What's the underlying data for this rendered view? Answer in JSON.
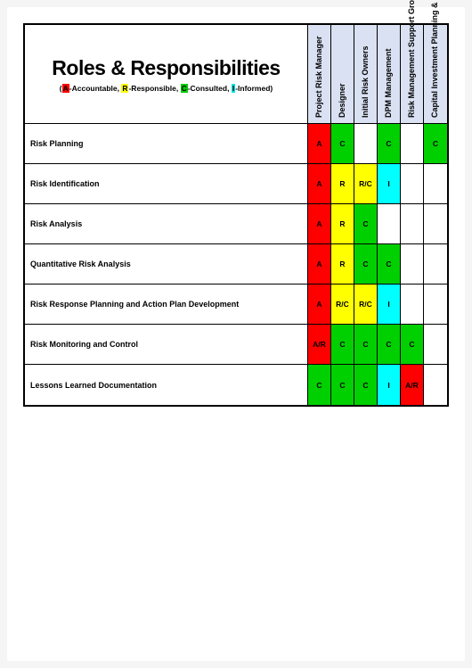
{
  "title": "Roles & Responsibilities",
  "legend": {
    "prefix": "(",
    "a_letter": "A",
    "a_text": "-Accountable, ",
    "r_letter": "R",
    "r_text": "-Responsible, ",
    "c_letter": "C",
    "c_text": "-Consulted, ",
    "i_letter": "I",
    "i_text": "-Informed)",
    "a_color": "#ff0000",
    "r_color": "#ffff00",
    "c_color": "#00cc00",
    "i_color": "#00e5e5"
  },
  "colors": {
    "A": "#ff0000",
    "R": "#ffff00",
    "C": "#00d000",
    "I": "#00ffff",
    "AR": "#ff0000",
    "RC": "#ffff00",
    "RC_green": "#00d000",
    "header_bg": "#d9e1f2",
    "blank": "#ffffff"
  },
  "columns": [
    "Project  Risk Manager",
    "Designer",
    "Initial Risk Owners",
    "DPM Management",
    "Risk Management Support Group",
    "Capital Investment Planning & Dev."
  ],
  "rows": [
    {
      "label": "Risk Planning",
      "cells": [
        {
          "v": "A",
          "bg": "#ff0000"
        },
        {
          "v": "C",
          "bg": "#00d000"
        },
        {
          "v": "",
          "bg": "#ffffff"
        },
        {
          "v": "C",
          "bg": "#00d000"
        },
        {
          "v": "",
          "bg": "#ffffff"
        },
        {
          "v": "C",
          "bg": "#00d000"
        }
      ]
    },
    {
      "label": "Risk Identification",
      "cells": [
        {
          "v": "A",
          "bg": "#ff0000"
        },
        {
          "v": "R",
          "bg": "#ffff00"
        },
        {
          "v": "R/C",
          "bg": "#ffff00"
        },
        {
          "v": "I",
          "bg": "#00ffff"
        },
        {
          "v": "",
          "bg": "#ffffff"
        },
        {
          "v": "",
          "bg": "#ffffff"
        }
      ]
    },
    {
      "label": "Risk Analysis",
      "cells": [
        {
          "v": "A",
          "bg": "#ff0000"
        },
        {
          "v": "R",
          "bg": "#ffff00"
        },
        {
          "v": "C",
          "bg": "#00d000"
        },
        {
          "v": "",
          "bg": "#ffffff"
        },
        {
          "v": "",
          "bg": "#ffffff"
        },
        {
          "v": "",
          "bg": "#ffffff"
        }
      ]
    },
    {
      "label": "Quantitative Risk Analysis",
      "cells": [
        {
          "v": "A",
          "bg": "#ff0000"
        },
        {
          "v": "R",
          "bg": "#ffff00"
        },
        {
          "v": "C",
          "bg": "#00d000"
        },
        {
          "v": "C",
          "bg": "#00d000"
        },
        {
          "v": "",
          "bg": "#ffffff"
        },
        {
          "v": "",
          "bg": "#ffffff"
        }
      ]
    },
    {
      "label": "Risk Response Planning and Action Plan Development",
      "cells": [
        {
          "v": "A",
          "bg": "#ff0000"
        },
        {
          "v": "R/C",
          "bg": "#ffff00"
        },
        {
          "v": "R/C",
          "bg": "#ffff00"
        },
        {
          "v": "I",
          "bg": "#00ffff"
        },
        {
          "v": "",
          "bg": "#ffffff"
        },
        {
          "v": "",
          "bg": "#ffffff"
        }
      ]
    },
    {
      "label": "Risk Monitoring and Control",
      "cells": [
        {
          "v": "A/R",
          "bg": "#ff0000"
        },
        {
          "v": "C",
          "bg": "#00d000"
        },
        {
          "v": "C",
          "bg": "#00d000"
        },
        {
          "v": "C",
          "bg": "#00d000"
        },
        {
          "v": "C",
          "bg": "#00d000"
        },
        {
          "v": "",
          "bg": "#ffffff"
        }
      ]
    },
    {
      "label": "Lessons Learned Documentation",
      "cells": [
        {
          "v": "C",
          "bg": "#00d000"
        },
        {
          "v": "C",
          "bg": "#00d000"
        },
        {
          "v": "C",
          "bg": "#00d000"
        },
        {
          "v": "I",
          "bg": "#00ffff"
        },
        {
          "v": "A/R",
          "bg": "#ff0000"
        },
        {
          "v": "",
          "bg": "#ffffff"
        }
      ]
    }
  ]
}
